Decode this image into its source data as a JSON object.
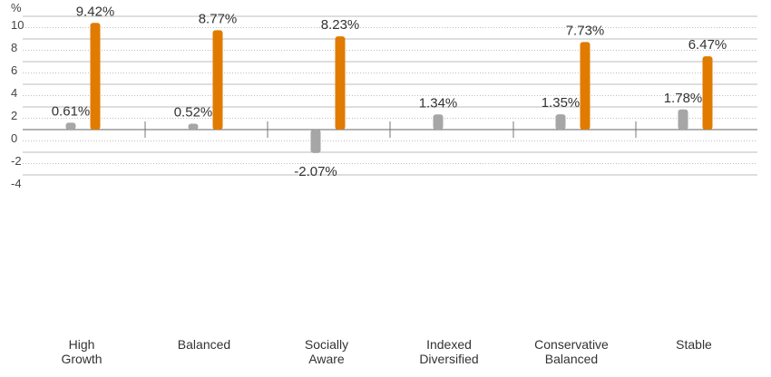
{
  "chart_data": {
    "type": "bar",
    "title": "",
    "xlabel": "",
    "ylabel": "",
    "y_unit": "%",
    "ylim": [
      -4,
      10
    ],
    "yticks": [
      -4,
      -2,
      0,
      2,
      4,
      6,
      8,
      10
    ],
    "grid": true,
    "categories": [
      [
        "High",
        "Growth"
      ],
      [
        "Balanced"
      ],
      [
        "Socially",
        "Aware"
      ],
      [
        "Indexed",
        "Diversified"
      ],
      [
        "Conservative",
        "Balanced"
      ],
      [
        "Stable"
      ]
    ],
    "series": [
      {
        "color": "#a6a6a6",
        "values": [
          0.61,
          0.52,
          -2.07,
          1.34,
          1.35,
          1.78
        ],
        "labels": [
          "0.61%",
          "0.52%",
          "-2.07%",
          "1.34%",
          "1.35%",
          "1.78%"
        ]
      },
      {
        "color": "#e07b00",
        "values": [
          9.42,
          8.77,
          8.23,
          null,
          7.73,
          6.47
        ],
        "labels": [
          "9.42%",
          "8.77%",
          "8.23%",
          "",
          "7.73%",
          "6.47%"
        ]
      }
    ]
  }
}
